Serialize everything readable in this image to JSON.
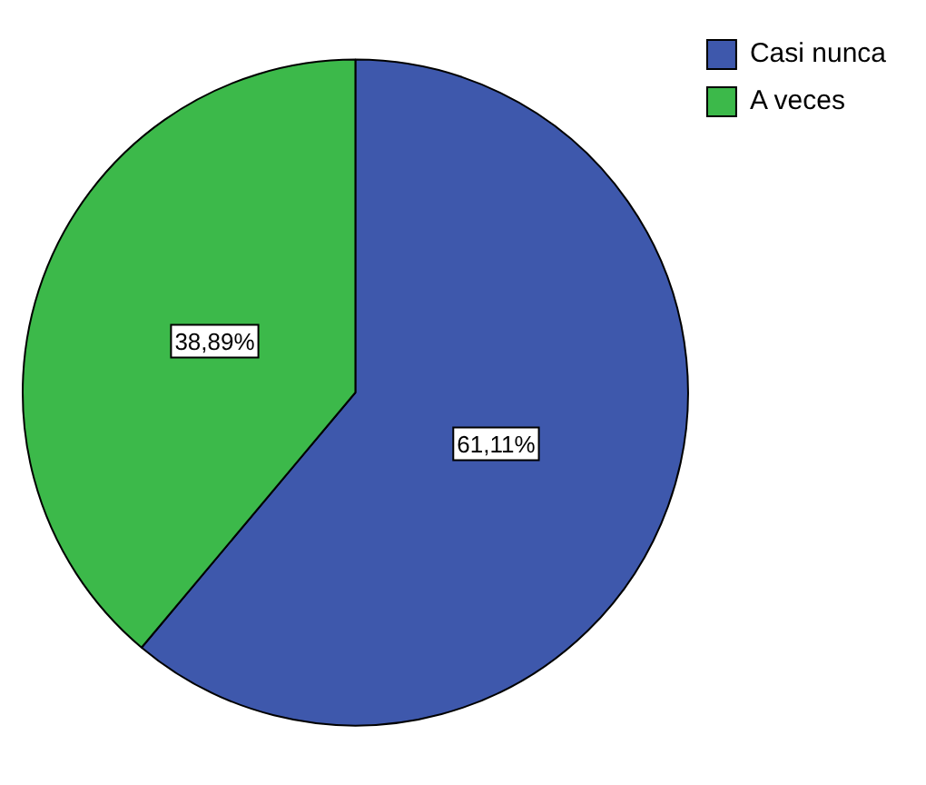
{
  "chart_data": {
    "type": "pie",
    "categories": [
      "Casi nunca",
      "A veces"
    ],
    "values": [
      61.11,
      38.89
    ],
    "colors": [
      "#3e58ac",
      "#3cb94a"
    ],
    "value_labels": [
      "61,11%",
      "38,89%"
    ],
    "legend": "top right"
  }
}
